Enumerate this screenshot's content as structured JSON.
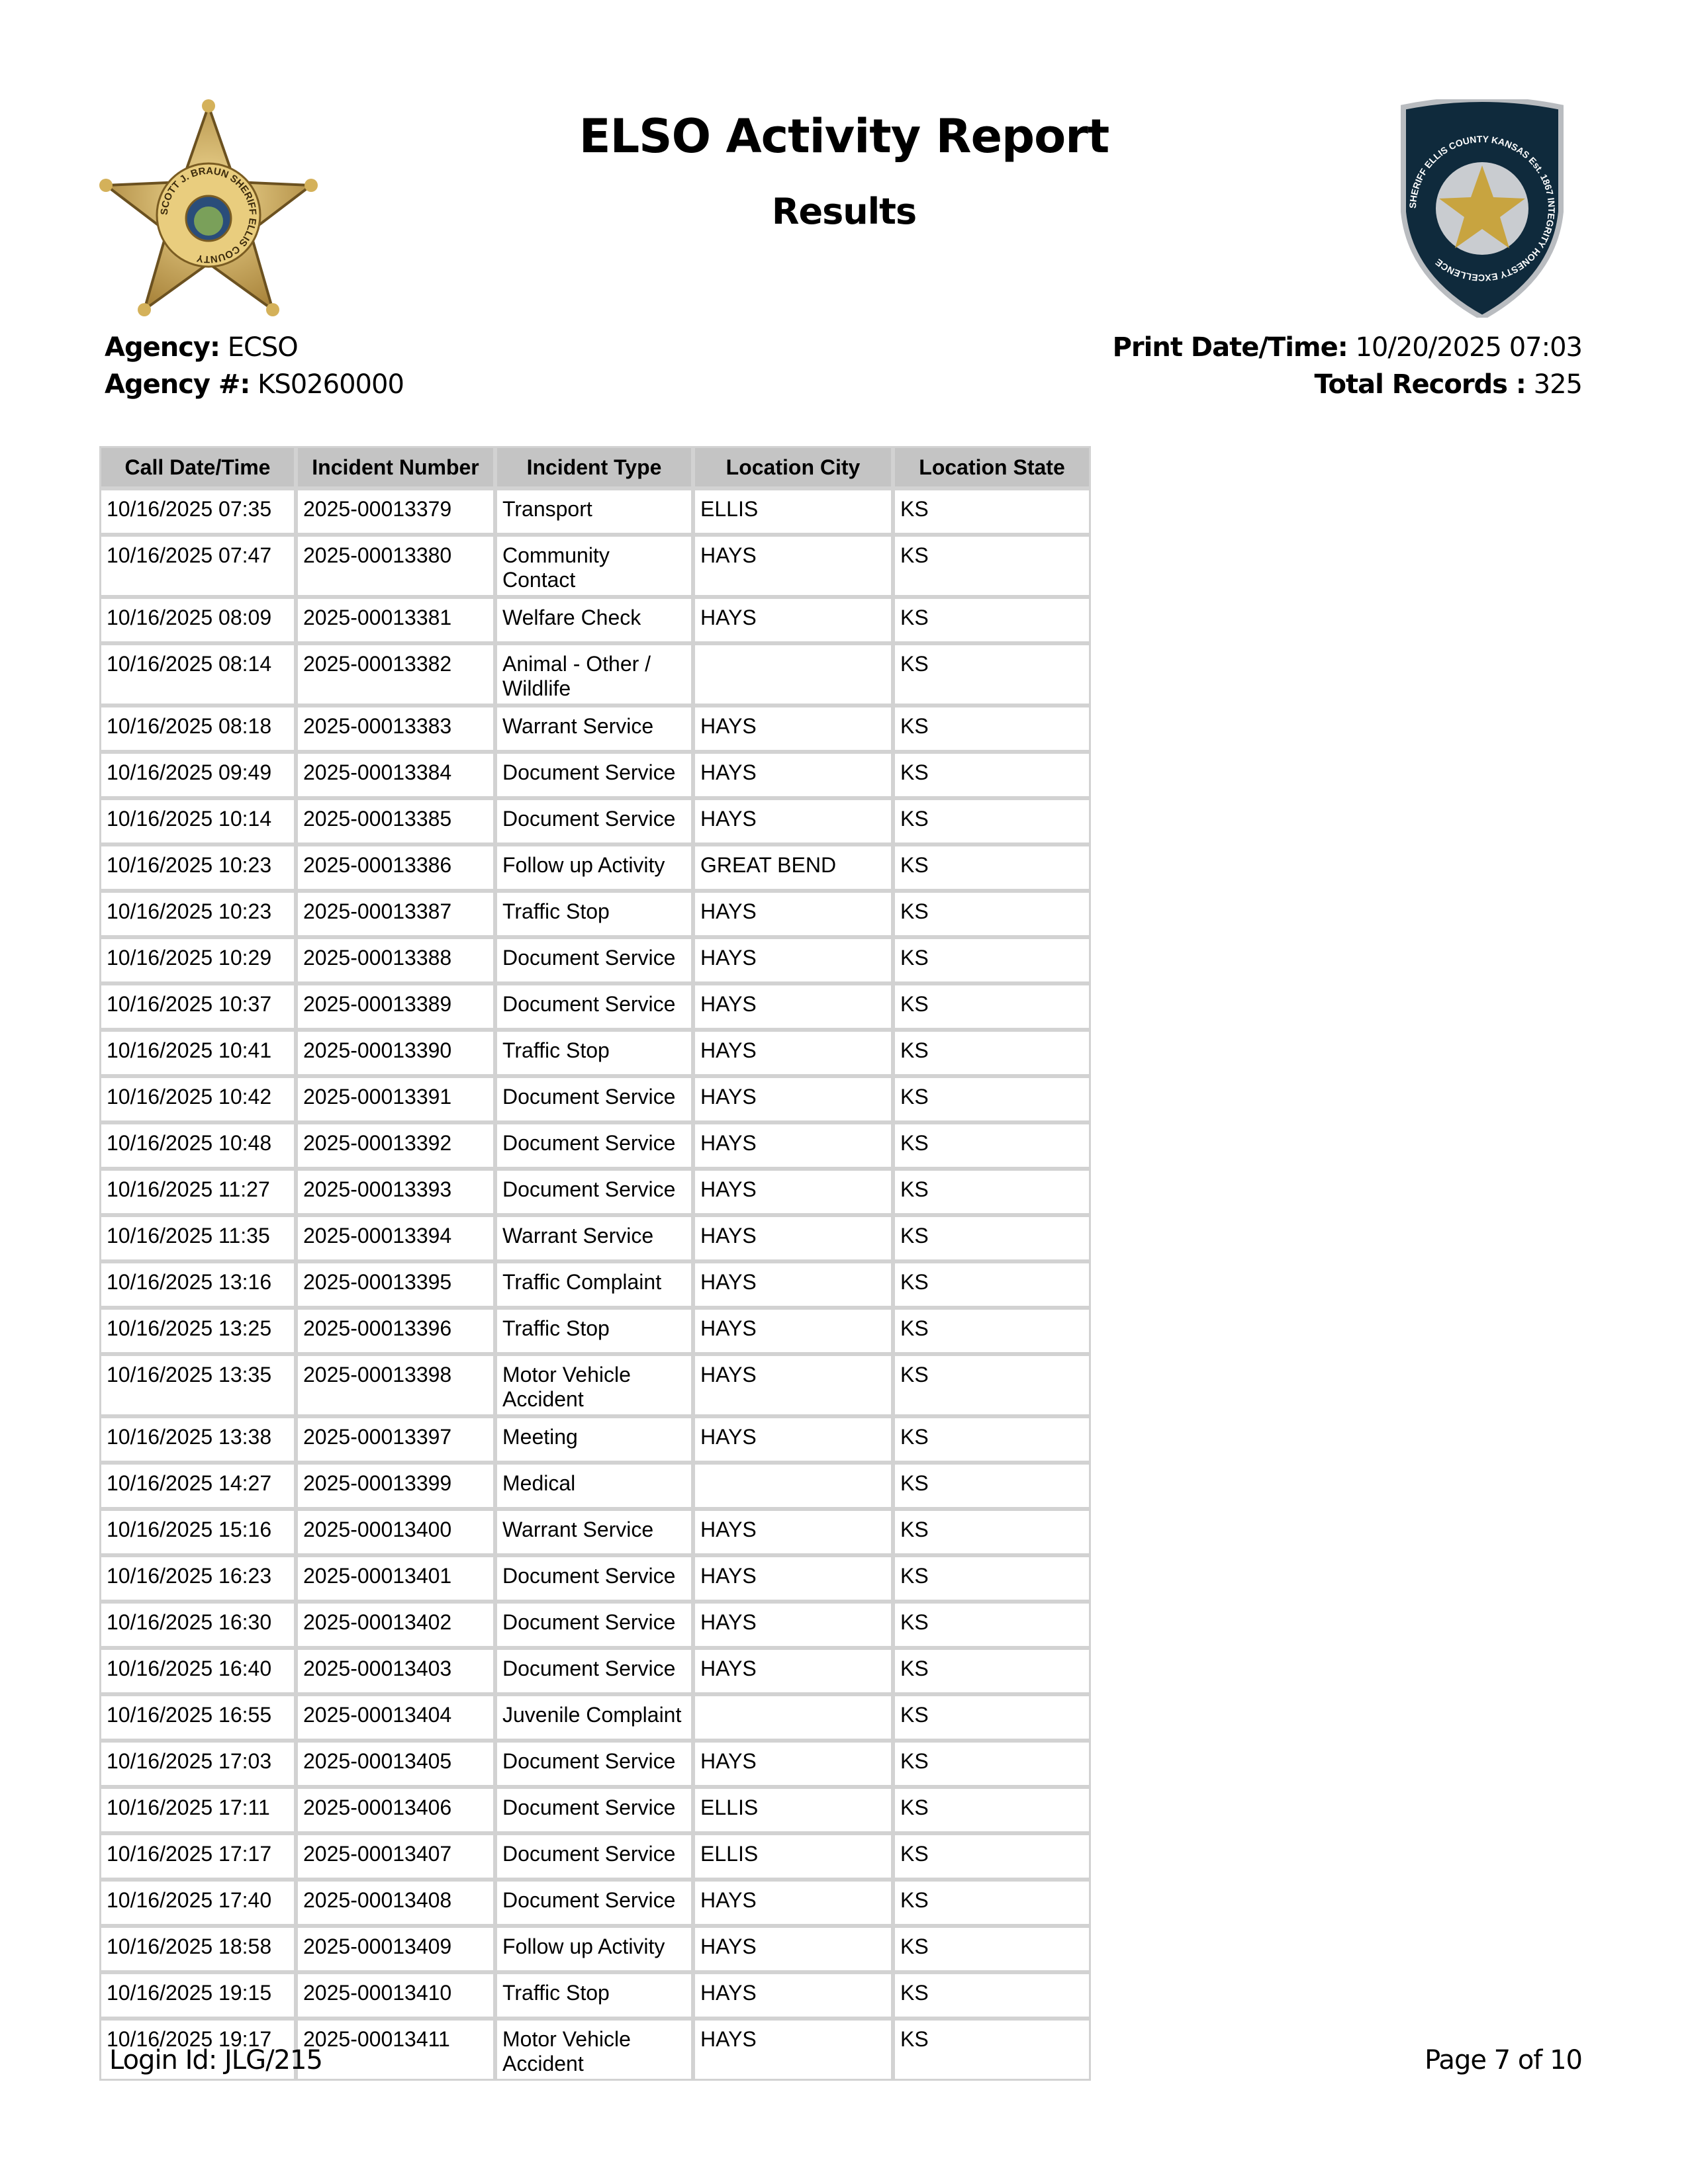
{
  "header": {
    "title": "ELSO Activity Report",
    "subtitle": "Results",
    "left_logo_text": "SCOTT J. BRAUN SHERIFF ELLIS COUNTY",
    "right_logo_text": "SHERIFF ELLIS COUNTY KANSAS Est. 1867 INTEGRITY HONESTY EXCELLENCE"
  },
  "meta": {
    "agency_label": "Agency:",
    "agency_value": "ECSO",
    "agency_num_label": "Agency #:",
    "agency_num_value": "KS0260000",
    "print_label": "Print Date/Time:",
    "print_value": "10/20/2025 07:03",
    "total_label": "Total Records :",
    "total_value": "325"
  },
  "table": {
    "columns": [
      "Call Date/Time",
      "Incident Number",
      "Incident Type",
      "Location City",
      "Location State"
    ],
    "rows": [
      [
        "10/16/2025 07:35",
        "2025-00013379",
        "Transport",
        "ELLIS",
        "KS"
      ],
      [
        "10/16/2025 07:47",
        "2025-00013380",
        "Community Contact",
        "HAYS",
        "KS"
      ],
      [
        "10/16/2025 08:09",
        "2025-00013381",
        "Welfare Check",
        "HAYS",
        "KS"
      ],
      [
        "10/16/2025 08:14",
        "2025-00013382",
        "Animal - Other / Wildlife",
        "",
        "KS"
      ],
      [
        "10/16/2025 08:18",
        "2025-00013383",
        "Warrant Service",
        "HAYS",
        "KS"
      ],
      [
        "10/16/2025 09:49",
        "2025-00013384",
        "Document Service",
        "HAYS",
        "KS"
      ],
      [
        "10/16/2025 10:14",
        "2025-00013385",
        "Document Service",
        "HAYS",
        "KS"
      ],
      [
        "10/16/2025 10:23",
        "2025-00013386",
        "Follow up Activity",
        "GREAT BEND",
        "KS"
      ],
      [
        "10/16/2025 10:23",
        "2025-00013387",
        "Traffic Stop",
        "HAYS",
        "KS"
      ],
      [
        "10/16/2025 10:29",
        "2025-00013388",
        "Document Service",
        "HAYS",
        "KS"
      ],
      [
        "10/16/2025 10:37",
        "2025-00013389",
        "Document Service",
        "HAYS",
        "KS"
      ],
      [
        "10/16/2025 10:41",
        "2025-00013390",
        "Traffic Stop",
        "HAYS",
        "KS"
      ],
      [
        "10/16/2025 10:42",
        "2025-00013391",
        "Document Service",
        "HAYS",
        "KS"
      ],
      [
        "10/16/2025 10:48",
        "2025-00013392",
        "Document Service",
        "HAYS",
        "KS"
      ],
      [
        "10/16/2025 11:27",
        "2025-00013393",
        "Document Service",
        "HAYS",
        "KS"
      ],
      [
        "10/16/2025 11:35",
        "2025-00013394",
        "Warrant Service",
        "HAYS",
        "KS"
      ],
      [
        "10/16/2025 13:16",
        "2025-00013395",
        "Traffic Complaint",
        "HAYS",
        "KS"
      ],
      [
        "10/16/2025 13:25",
        "2025-00013396",
        "Traffic Stop",
        "HAYS",
        "KS"
      ],
      [
        "10/16/2025 13:35",
        "2025-00013398",
        "Motor Vehicle Accident",
        "HAYS",
        "KS"
      ],
      [
        "10/16/2025 13:38",
        "2025-00013397",
        "Meeting",
        "HAYS",
        "KS"
      ],
      [
        "10/16/2025 14:27",
        "2025-00013399",
        "Medical",
        "",
        "KS"
      ],
      [
        "10/16/2025 15:16",
        "2025-00013400",
        "Warrant Service",
        "HAYS",
        "KS"
      ],
      [
        "10/16/2025 16:23",
        "2025-00013401",
        "Document Service",
        "HAYS",
        "KS"
      ],
      [
        "10/16/2025 16:30",
        "2025-00013402",
        "Document Service",
        "HAYS",
        "KS"
      ],
      [
        "10/16/2025 16:40",
        "2025-00013403",
        "Document Service",
        "HAYS",
        "KS"
      ],
      [
        "10/16/2025 16:55",
        "2025-00013404",
        "Juvenile Complaint",
        "",
        "KS"
      ],
      [
        "10/16/2025 17:03",
        "2025-00013405",
        "Document Service",
        "HAYS",
        "KS"
      ],
      [
        "10/16/2025 17:11",
        "2025-00013406",
        "Document Service",
        "ELLIS",
        "KS"
      ],
      [
        "10/16/2025 17:17",
        "2025-00013407",
        "Document Service",
        "ELLIS",
        "KS"
      ],
      [
        "10/16/2025 17:40",
        "2025-00013408",
        "Document Service",
        "HAYS",
        "KS"
      ],
      [
        "10/16/2025 18:58",
        "2025-00013409",
        "Follow up Activity",
        "HAYS",
        "KS"
      ],
      [
        "10/16/2025 19:15",
        "2025-00013410",
        "Traffic Stop",
        "HAYS",
        "KS"
      ],
      [
        "10/16/2025 19:17",
        "2025-00013411",
        "Motor Vehicle Accident",
        "HAYS",
        "KS"
      ]
    ]
  },
  "footer": {
    "login": "Login Id: JLG/215",
    "page": "Page 7 of 10"
  },
  "colors": {
    "header_bg": "#c4c4c4",
    "border": "#d2d2d2",
    "badge_gold": "#d4b15a",
    "patch_navy": "#0f2a3c"
  }
}
